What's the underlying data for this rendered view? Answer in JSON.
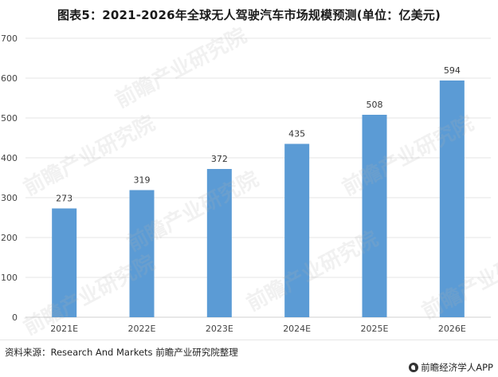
{
  "title": "图表5：2021-2026年全球无人驾驶汽车市场规模预测(单位：亿美元)",
  "source": "资料来源：Research And Markets 前瞻产业研究院整理",
  "brand": "前瞻经济学人APP",
  "watermark": "前瞻产业研究院",
  "colors": {
    "bar": "#5b9bd5",
    "grid": "#e6e6e6",
    "axis": "#d0d0d0",
    "text": "#444444"
  },
  "chart_data": {
    "type": "bar",
    "categories": [
      "2021E",
      "2022E",
      "2023E",
      "2024E",
      "2025E",
      "2026E"
    ],
    "values": [
      273,
      319,
      372,
      435,
      508,
      594
    ],
    "data_labels": [
      "273",
      "319",
      "372",
      "435",
      "508",
      "594"
    ],
    "ylim": [
      0,
      700
    ],
    "yticks": [
      0,
      100,
      200,
      300,
      400,
      500,
      600,
      700
    ],
    "grid": true,
    "legend": "none"
  }
}
